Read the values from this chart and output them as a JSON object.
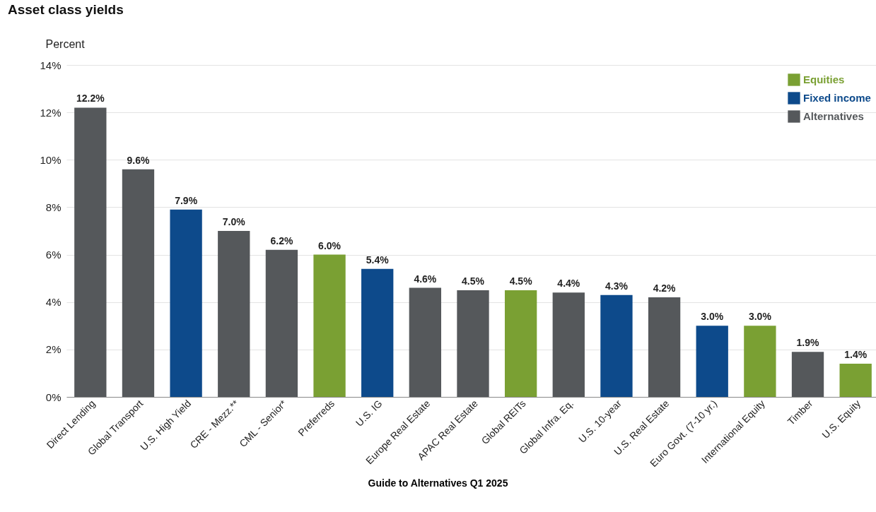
{
  "chart_data": {
    "type": "bar",
    "title": "Asset class yields",
    "ylabel": "Percent",
    "categories": [
      "Direct Lending",
      "Global Transport",
      "U.S. High Yield",
      "CRE - Mezz.**",
      "CML - Senior*",
      "Preferreds",
      "U.S. IG",
      "Europe Real Estate",
      "APAC Real Estate",
      "Global REITs",
      "Global Infra. Eq.",
      "U.S. 10-year",
      "U.S. Real Estate",
      "Euro Govt. (7-10 yr.)",
      "International Equity",
      "Timber",
      "U.S. Equity"
    ],
    "series": [
      {
        "name": "Equities",
        "color": "#7aa033",
        "values": [
          null,
          null,
          null,
          null,
          null,
          6.0,
          null,
          null,
          null,
          4.5,
          null,
          null,
          null,
          null,
          3.0,
          null,
          1.4
        ],
        "value_labels": [
          null,
          null,
          null,
          null,
          null,
          "6.0%",
          null,
          null,
          null,
          "4.5%",
          null,
          null,
          null,
          null,
          "3.0%",
          null,
          "1.4%"
        ]
      },
      {
        "name": "Fixed income",
        "color": "#0d4a8b",
        "values": [
          null,
          null,
          7.9,
          null,
          null,
          null,
          5.4,
          null,
          null,
          null,
          null,
          4.3,
          null,
          3.0,
          null,
          null,
          null
        ],
        "value_labels": [
          null,
          null,
          "7.9%",
          null,
          null,
          null,
          "5.4%",
          null,
          null,
          null,
          null,
          "4.3%",
          null,
          "3.0%",
          null,
          null,
          null
        ]
      },
      {
        "name": "Alternatives",
        "color": "#55585b",
        "values": [
          12.2,
          9.6,
          null,
          7.0,
          6.2,
          null,
          null,
          4.6,
          4.5,
          null,
          4.4,
          null,
          4.2,
          null,
          null,
          1.9,
          null
        ],
        "value_labels": [
          "12.2%",
          "9.6%",
          null,
          "7.0%",
          "6.2%",
          null,
          null,
          "4.6%",
          "4.5%",
          null,
          "4.4%",
          null,
          "4.2%",
          null,
          null,
          "1.9%",
          null
        ]
      }
    ],
    "ylim": [
      0,
      14
    ],
    "yticks": [
      {
        "value": 0,
        "label": "0%"
      },
      {
        "value": 2,
        "label": "2%"
      },
      {
        "value": 4,
        "label": "4%"
      },
      {
        "value": 6,
        "label": "6%"
      },
      {
        "value": 8,
        "label": "8%"
      },
      {
        "value": 10,
        "label": "10%"
      },
      {
        "value": 12,
        "label": "12%"
      },
      {
        "value": 14,
        "label": "14%"
      }
    ],
    "grid": "y",
    "legend": "top right",
    "annotations": [
      "Guide to Alternatives Q1 2025"
    ]
  }
}
